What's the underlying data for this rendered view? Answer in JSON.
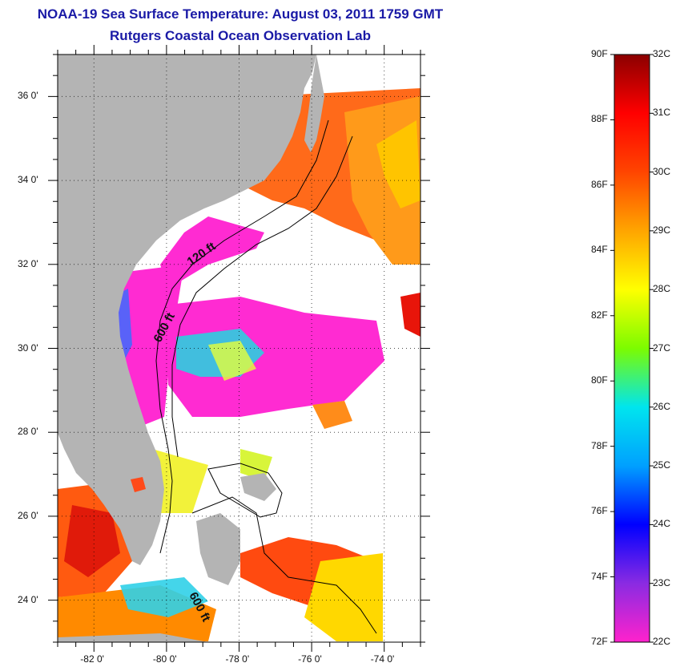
{
  "title": "NOAA-19 Sea Surface Temperature:  August 03, 2011 1759 GMT",
  "subtitle": "Rutgers Coastal Ocean Observation Lab",
  "map": {
    "lon_range": [
      -83,
      -73
    ],
    "lat_range": [
      23,
      37
    ],
    "x_ticks": [
      "-82 0'",
      "-80 0'",
      "-78 0'",
      "-76 0'",
      "-74 0'"
    ],
    "y_ticks": [
      "36 0'",
      "34 0'",
      "32 0'",
      "30 0'",
      "28 0'",
      "26 0'",
      "24 0'"
    ],
    "grid": "dotted",
    "contour_labels": [
      "120 ft",
      "600 ft",
      "600 ft"
    ],
    "colors": {
      "land": "#b4b4b4",
      "cloud_mask": "#ffffff",
      "contour": "#000000"
    }
  },
  "colorbar": {
    "fahrenheit_labels": [
      "90F",
      "88F",
      "86F",
      "84F",
      "82F",
      "80F",
      "78F",
      "76F",
      "74F",
      "72F"
    ],
    "celsius_labels": [
      "32C",
      "31C",
      "30C",
      "29C",
      "28C",
      "27C",
      "26C",
      "25C",
      "24C",
      "23C",
      "22C"
    ],
    "range_c": [
      22,
      32
    ],
    "range_f": [
      72,
      90
    ],
    "colors": [
      "#ff22cc",
      "#8a2be2",
      "#0000ff",
      "#00a0ff",
      "#00e5ee",
      "#7cfc00",
      "#ffff00",
      "#ffa500",
      "#ff4500",
      "#ff0000",
      "#8b0000"
    ]
  }
}
